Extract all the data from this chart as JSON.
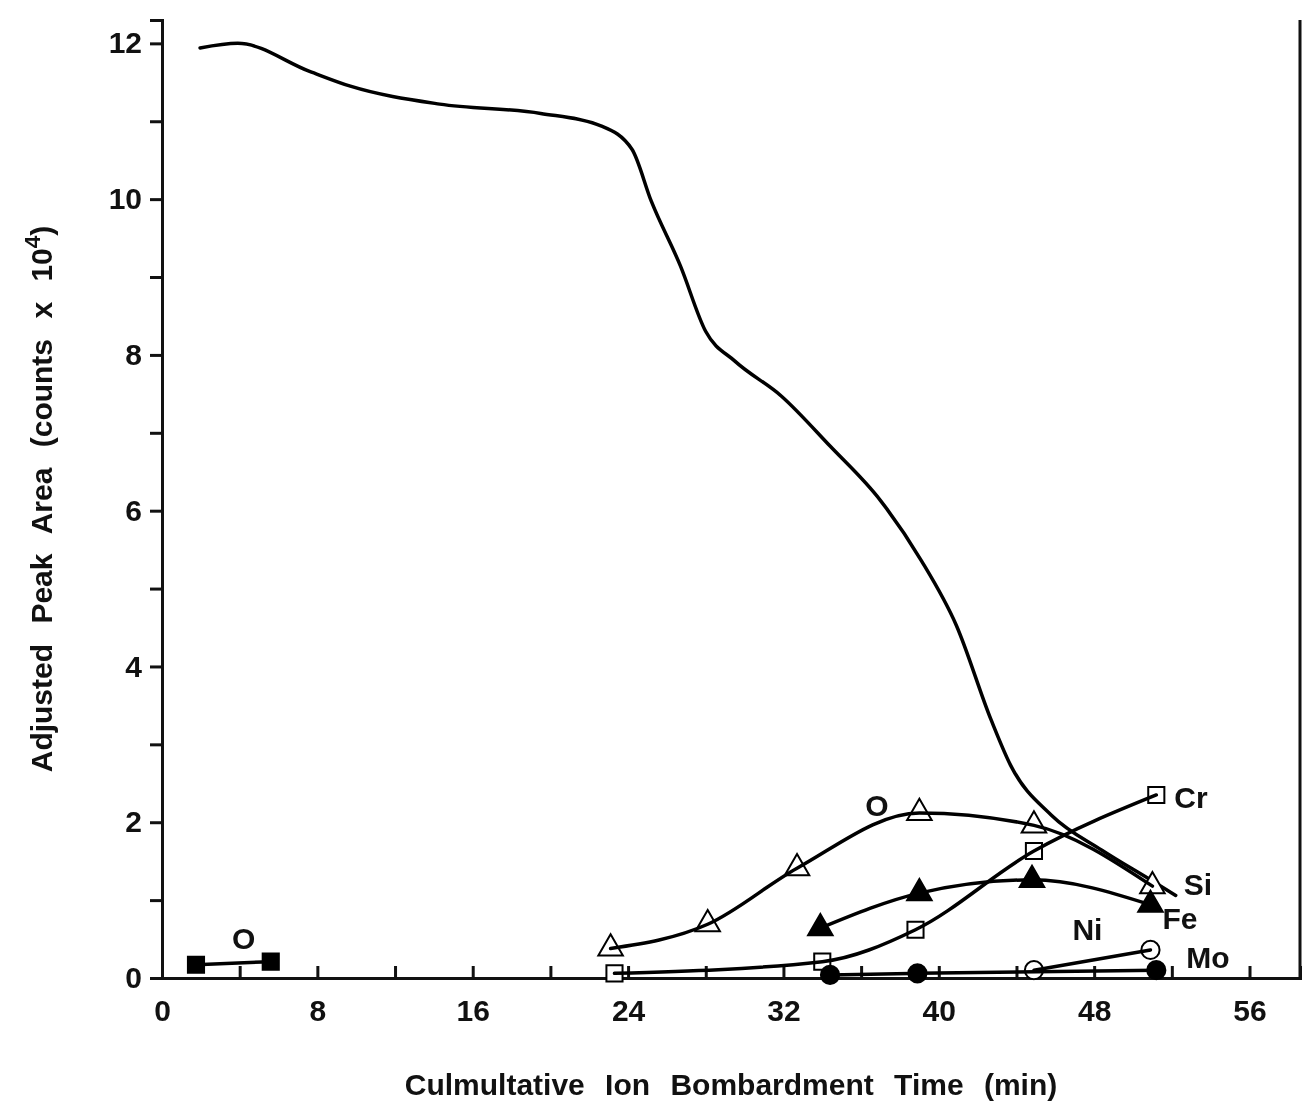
{
  "chart_data": {
    "type": "line",
    "xlabel": "Culmultative Ion Bombardment Time (min)",
    "ylabel": "Adjusted Peak Area (counts x 10$^{4}$)",
    "xlim": [
      0,
      58.6
    ],
    "ylim": [
      0,
      12.3
    ],
    "xticks": [
      0,
      {
        "value": 4,
        "label": null
      },
      8,
      {
        "value": 12,
        "label": null
      },
      16,
      {
        "value": 20,
        "label": null
      },
      24,
      {
        "value": 28,
        "label": null
      },
      32,
      {
        "value": 36,
        "label": null
      },
      40,
      {
        "value": 44,
        "label": null
      },
      48,
      {
        "value": 52,
        "label": null
      },
      56
    ],
    "yticks": [
      0,
      {
        "value": 1,
        "label": null
      },
      2,
      {
        "value": 3,
        "label": null
      },
      4,
      {
        "value": 5,
        "label": null
      },
      6,
      {
        "value": 7,
        "label": null
      },
      8,
      {
        "value": 9,
        "label": null
      },
      10,
      {
        "value": 11,
        "label": null
      },
      12
    ],
    "series": [
      {
        "name": "Si",
        "color": "#000000",
        "marker": "none",
        "x": [
          1.96,
          3.9,
          7.6,
          9.7,
          14.3,
          19.5,
          22.6,
          24.2,
          25.2,
          26.7,
          28.0,
          29.5,
          31.9,
          34.4,
          37.0,
          39.1,
          40.9,
          42.7,
          43.7,
          45.8,
          48.4,
          50.9,
          52.2
        ],
        "values": [
          11.94,
          12.0,
          11.64,
          11.45,
          11.22,
          11.1,
          10.94,
          10.64,
          9.97,
          9.14,
          8.3,
          7.92,
          7.47,
          6.83,
          6.13,
          5.36,
          4.53,
          3.31,
          2.73,
          2.09,
          1.64,
          1.26,
          1.06
        ]
      },
      {
        "name": "O",
        "color": "#000000",
        "colors": [
          "#ffffff",
          "#ffffff",
          "#ffffff",
          "#ffffff",
          "#ffffff",
          "#ffffff"
        ],
        "marker": "triangle",
        "x": [
          23.1,
          28.1,
          32.7,
          39.0,
          44.9,
          51.0
        ],
        "values": [
          0.38,
          0.69,
          1.41,
          2.12,
          1.96,
          1.18
        ]
      },
      {
        "name": "Fe",
        "color": "#000000",
        "marker": "triangle",
        "x": [
          33.9,
          39.0,
          44.8,
          50.9
        ],
        "values": [
          0.64,
          1.09,
          1.26,
          0.94
        ]
      },
      {
        "name": "Cr",
        "color": "#000000",
        "colors": [
          "#ffffff",
          "#ffffff",
          "#ffffff",
          "#ffffff",
          "#ffffff"
        ],
        "marker": "square",
        "x": [
          23.3,
          34.0,
          38.8,
          44.9,
          51.2
        ],
        "values": [
          0.06,
          0.21,
          0.62,
          1.63,
          2.35
        ]
      },
      {
        "name": "Ni",
        "color": "#000000",
        "colors": [
          "#ffffff",
          "#ffffff"
        ],
        "marker": "circle",
        "x": [
          44.9,
          50.9
        ],
        "values": [
          0.1,
          0.36
        ]
      },
      {
        "name": "Mo",
        "color": "#000000",
        "marker": "circle",
        "x": [
          34.4,
          38.9,
          51.2
        ],
        "values": [
          0.04,
          0.06,
          0.1
        ]
      },
      {
        "name": "O",
        "color": "#000000",
        "marker": "square",
        "x": [
          1.75,
          5.6
        ],
        "values": [
          0.17,
          0.21
        ]
      }
    ]
  }
}
